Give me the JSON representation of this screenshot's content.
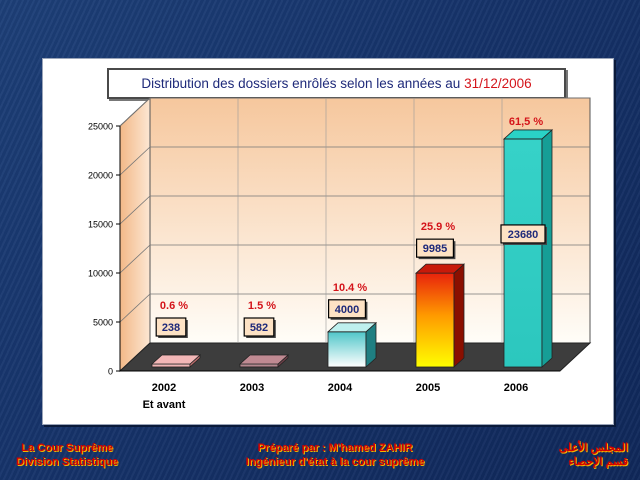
{
  "title": {
    "main": "Distribution des dossiers enrôlés selon les années au",
    "date": "31/12/2006"
  },
  "chart_data": {
    "type": "bar",
    "categories": [
      "2002",
      "2003",
      "2004",
      "2005",
      "2006"
    ],
    "category_sublabels": [
      "Et avant",
      "",
      "",
      "",
      ""
    ],
    "values": [
      238,
      582,
      4000,
      9985,
      23680
    ],
    "value_labels": [
      "238",
      "582",
      "4000",
      "9985",
      "23680"
    ],
    "percent_labels": [
      "0.6 %",
      "1.5 %",
      "10.4 %",
      "25.9 %",
      "61,5 %"
    ],
    "y_ticks": [
      "0",
      "5000",
      "10000",
      "15000",
      "20000",
      "25000"
    ],
    "ylim": [
      0,
      25000
    ],
    "grid": true,
    "three_d": true
  },
  "colors": {
    "title_text": "#1f2a7a",
    "date_text": "#d4141a",
    "percent_text": "#d4141a",
    "value_text": "#1f2a7a",
    "footer_text": "#d40000"
  },
  "footer": {
    "left_line1": "La Cour Suprême",
    "left_line2": "Division Statistique",
    "center_line1": "Préparé par : M'hamed ZAHIR",
    "center_line2": "Ingénieur d'état à la cour suprême",
    "right_line1": "المجلس الأعلى",
    "right_line2": "قسم الإحصاء"
  }
}
